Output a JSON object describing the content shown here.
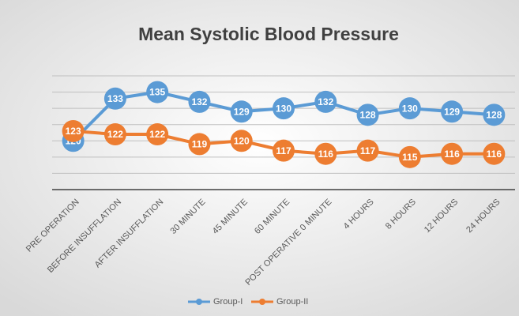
{
  "chart_data": {
    "type": "line",
    "title": "Mean Systolic Blood Pressure",
    "categories": [
      "PRE OPERATION",
      "BEFORE INSUFFLATION",
      "AFTER INSUFFLATION",
      "30 MINUTE",
      "45 MINUTE",
      "60 MINUTE",
      "POST OPERATIVE 0 MINUTE",
      "4 HOURS",
      "8 HOURS",
      "12 HOURS",
      "24 HOURS"
    ],
    "series": [
      {
        "name": "Group-I",
        "color": "#5b9bd5",
        "values": [
          120,
          133,
          135,
          132,
          129,
          130,
          132,
          128,
          130,
          129,
          128
        ]
      },
      {
        "name": "Group-II",
        "color": "#ed7d31",
        "values": [
          123,
          122,
          122,
          119,
          120,
          117,
          116,
          117,
          115,
          116,
          116
        ]
      }
    ],
    "ylim": [
      105,
      140
    ],
    "yticks": [
      105,
      110,
      115,
      120,
      125,
      130,
      135,
      140
    ],
    "grid": true,
    "legend": "bottom"
  }
}
